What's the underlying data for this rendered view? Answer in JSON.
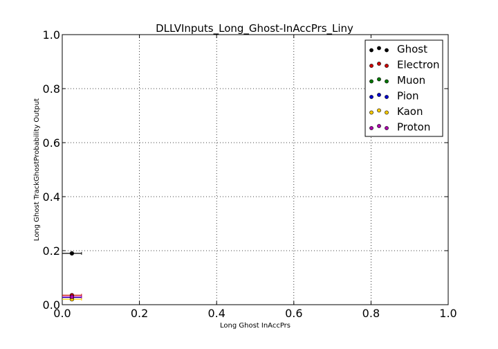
{
  "chart_data": {
    "type": "scatter",
    "title": "DLLVInputs_Long_Ghost-InAccPrs_Liny",
    "xlabel": "Long Ghost InAccPrs",
    "ylabel": "Long Ghost TrackGhostProbability Output",
    "xlim": [
      0.0,
      1.0
    ],
    "ylim": [
      0.0,
      1.0
    ],
    "xticks": [
      "0.0",
      "0.2",
      "0.4",
      "0.6",
      "0.8",
      "1.0"
    ],
    "yticks": [
      "0.0",
      "0.2",
      "0.4",
      "0.6",
      "0.8",
      "1.0"
    ],
    "grid": true,
    "legend_position": "top-right",
    "series": [
      {
        "name": "Ghost",
        "color": "#000000",
        "x": [
          0.025
        ],
        "y": [
          0.19
        ],
        "xerr": 0.025
      },
      {
        "name": "Electron",
        "color": "#cc0000",
        "x": [
          0.025
        ],
        "y": [
          0.035
        ],
        "xerr": 0.025
      },
      {
        "name": "Muon",
        "color": "#007700",
        "x": [
          0.025
        ],
        "y": [
          0.027
        ],
        "xerr": 0.025
      },
      {
        "name": "Pion",
        "color": "#0000cc",
        "x": [
          0.025
        ],
        "y": [
          0.027
        ],
        "xerr": 0.025
      },
      {
        "name": "Kaon",
        "color": "#ffcc00",
        "x": [
          0.025
        ],
        "y": [
          0.02
        ],
        "xerr": 0.025
      },
      {
        "name": "Proton",
        "color": "#aa00aa",
        "x": [
          0.025
        ],
        "y": [
          0.029
        ],
        "xerr": 0.025
      }
    ]
  }
}
